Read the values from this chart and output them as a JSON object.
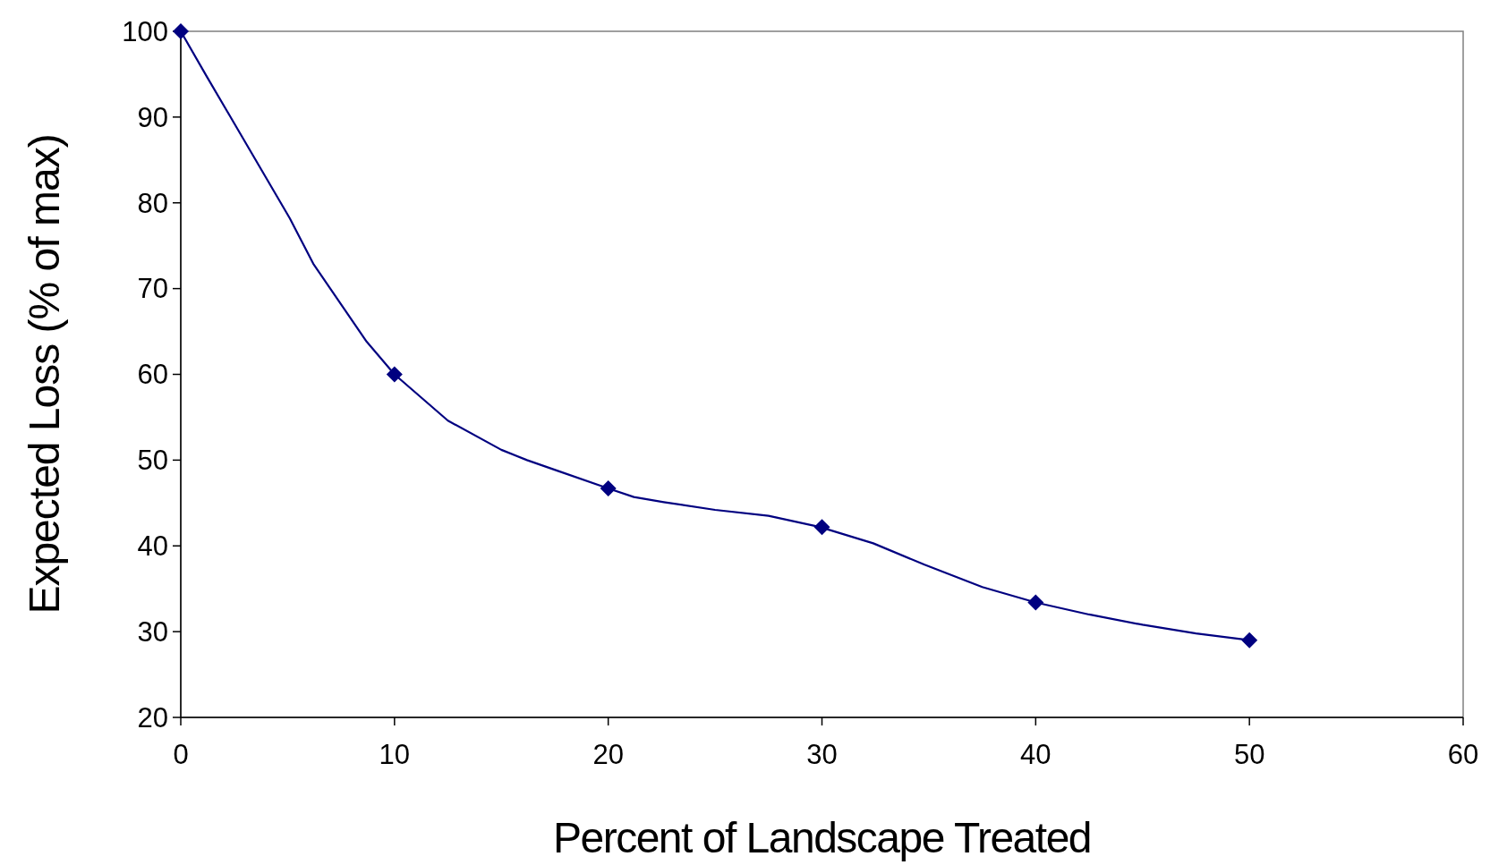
{
  "chart_data": {
    "type": "line",
    "xlabel": "Percent of Landscape Treated",
    "ylabel": "Expected Loss (% of max)",
    "xlim": [
      0,
      60
    ],
    "xticks": [
      0,
      10,
      20,
      30,
      40,
      50,
      60
    ],
    "ylim": [
      20,
      100
    ],
    "yticks": [
      20,
      30,
      40,
      50,
      60,
      70,
      80,
      90,
      100
    ],
    "grid": false,
    "series": [
      {
        "type": "line",
        "color": "#000080",
        "marker": "none",
        "x": [
          0,
          1.2,
          2.4,
          5.1,
          6.2,
          8.7,
          10,
          12.5,
          15,
          16.2,
          17.7,
          20,
          21.2,
          22.6,
          25,
          27.5,
          29.9,
          32.4,
          34.8,
          37.5,
          40,
          42.5,
          45,
          47.5,
          50
        ],
        "values": [
          100,
          94.8,
          89.7,
          78.2,
          72.9,
          63.8,
          60,
          54.6,
          51.2,
          50,
          48.7,
          46.7,
          45.7,
          45.1,
          44.2,
          43.5,
          42.2,
          40.3,
          37.8,
          35.2,
          33.4,
          32,
          30.8,
          29.8,
          29
        ]
      },
      {
        "type": "scatter",
        "color": "#000080",
        "marker": "diamond",
        "x": [
          0,
          10,
          20,
          30,
          40,
          50
        ],
        "values": [
          100,
          60,
          46.7,
          42.2,
          33.4,
          29
        ]
      }
    ]
  }
}
